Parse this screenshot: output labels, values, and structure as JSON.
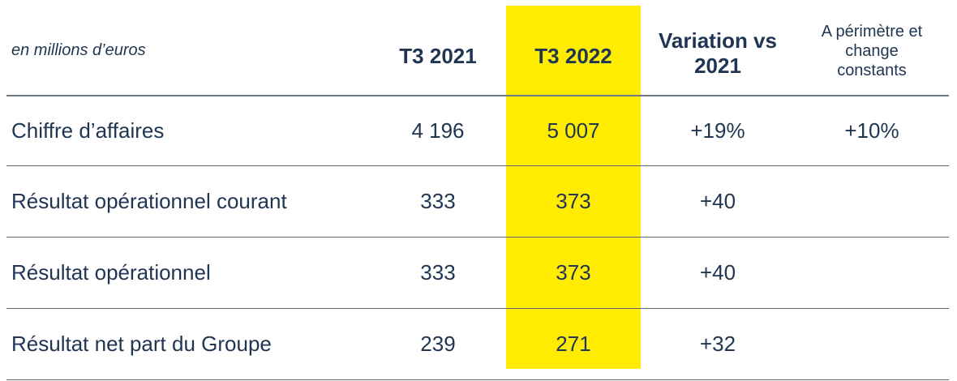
{
  "header": {
    "unit": "en millions d’euros",
    "col_2021": "T3 2021",
    "col_2022": "T3 2022",
    "col_variation_line1": "Variation vs",
    "col_variation_line2": "2021",
    "col_constant_line1": "A périmètre et",
    "col_constant_line2": "change",
    "col_constant_line3": "constants"
  },
  "rows": [
    {
      "label": "Chiffre d’affaires",
      "t3_2021": "4 196",
      "t3_2022": "5 007",
      "variation": "+19%",
      "constant": "+10%"
    },
    {
      "label": "Résultat opérationnel courant",
      "t3_2021": "333",
      "t3_2022": "373",
      "variation": "+40",
      "constant": ""
    },
    {
      "label": "Résultat opérationnel",
      "t3_2021": "333",
      "t3_2022": "373",
      "variation": "+40",
      "constant": ""
    },
    {
      "label": "Résultat net part du Groupe",
      "t3_2021": "239",
      "t3_2022": "271",
      "variation": "+32",
      "constant": ""
    }
  ],
  "colors": {
    "highlight": "#ffec00",
    "text": "#1f3552",
    "rule": "#5b6470"
  }
}
